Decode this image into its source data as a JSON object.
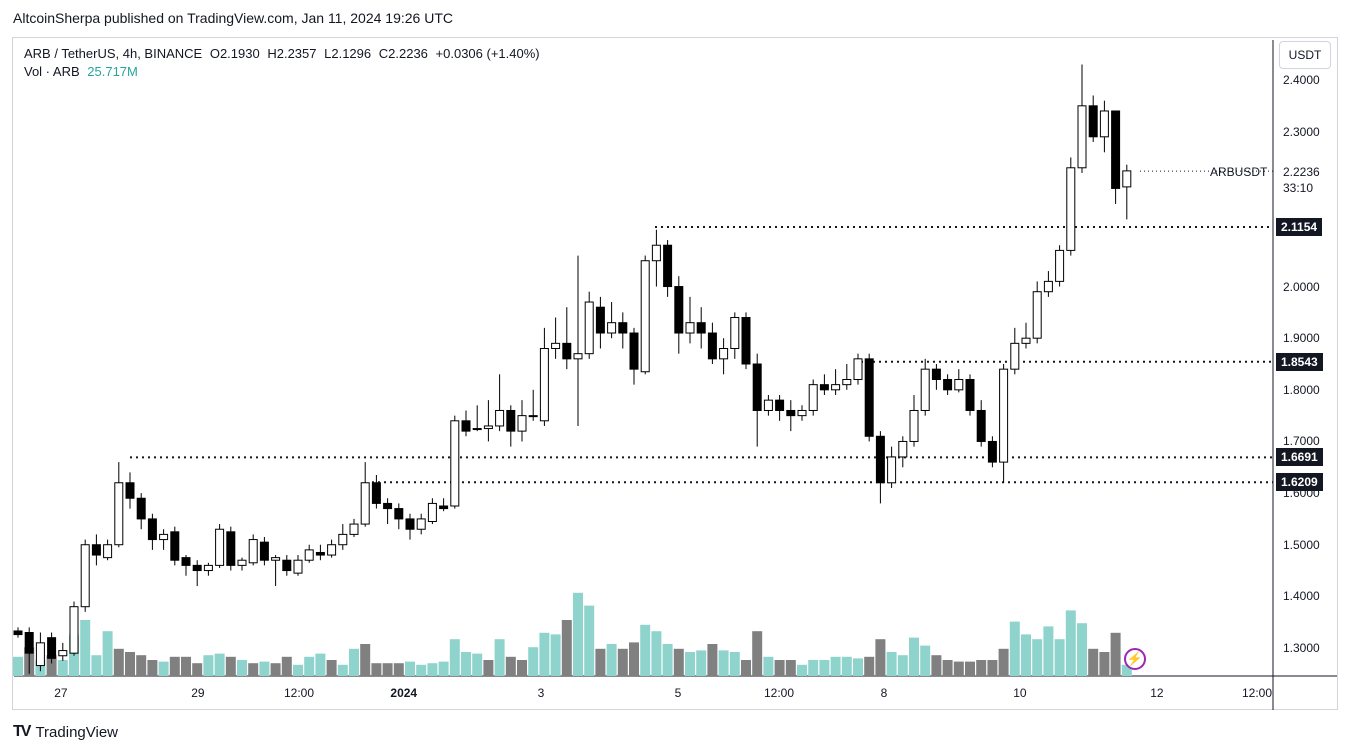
{
  "header": {
    "publish_line": "AltcoinSherpa published on TradingView.com, Jan 11, 2024 19:26 UTC"
  },
  "legend": {
    "symbol": "ARB / TetherUS, 4h, BINANCE",
    "open": "O2.1930",
    "high": "H2.2357",
    "low": "L2.1296",
    "close": "C2.2236",
    "change": "+0.0306 (+1.40%)",
    "vol_label": "Vol · ARB",
    "vol_value": "25.717M"
  },
  "price_axis": {
    "currency": "USDT",
    "labels": [
      "2.4000",
      "2.3000",
      "2.0000",
      "1.9000",
      "1.8000",
      "1.7000",
      "1.6000",
      "1.5000",
      "1.4000",
      "1.3000"
    ],
    "symbol_label": "ARBUSDT",
    "last_price": "2.2236",
    "countdown": "33:10"
  },
  "levels": [
    {
      "label": "2.1154",
      "value": 2.1154
    },
    {
      "label": "1.8543",
      "value": 1.8543
    },
    {
      "label": "1.6691",
      "value": 1.6691
    },
    {
      "label": "1.6209",
      "value": 1.6209
    }
  ],
  "time_axis": {
    "labels": [
      {
        "text": "27",
        "bold": false
      },
      {
        "text": "29",
        "bold": false
      },
      {
        "text": "12:00",
        "bold": false
      },
      {
        "text": "2024",
        "bold": true
      },
      {
        "text": "3",
        "bold": false
      },
      {
        "text": "5",
        "bold": false
      },
      {
        "text": "12:00",
        "bold": false
      },
      {
        "text": "8",
        "bold": false
      },
      {
        "text": "10",
        "bold": false
      },
      {
        "text": "12",
        "bold": false
      },
      {
        "text": "12:00",
        "bold": false
      }
    ]
  },
  "footer": {
    "brand": "TradingView",
    "logo_icon": "tradingview-logo-icon"
  },
  "colors": {
    "up_volume": "#8fd3cd",
    "down_volume": "#808080",
    "candle_border": "#000000",
    "up_body": "#ffffff",
    "down_body": "#000000",
    "flash_accent": "#9c27b0"
  },
  "chart_data": {
    "type": "candlestick",
    "title": "",
    "xlabel": "",
    "ylabel": "",
    "ylim": [
      1.255,
      2.445
    ],
    "grid": false,
    "candles": [
      [
        1.333,
        1.326,
        1.34,
        1.32
      ],
      [
        1.33,
        1.29,
        1.34,
        1.25
      ],
      [
        1.266,
        1.31,
        1.33,
        1.255
      ],
      [
        1.32,
        1.28,
        1.33,
        1.27
      ],
      [
        1.285,
        1.295,
        1.31,
        1.275
      ],
      [
        1.29,
        1.38,
        1.39,
        1.285
      ],
      [
        1.38,
        1.5,
        1.51,
        1.37
      ],
      [
        1.5,
        1.48,
        1.52,
        1.46
      ],
      [
        1.475,
        1.5,
        1.51,
        1.47
      ],
      [
        1.5,
        1.62,
        1.66,
        1.495
      ],
      [
        1.62,
        1.59,
        1.64,
        1.57
      ],
      [
        1.59,
        1.55,
        1.6,
        1.53
      ],
      [
        1.55,
        1.51,
        1.56,
        1.49
      ],
      [
        1.51,
        1.52,
        1.53,
        1.49
      ],
      [
        1.525,
        1.47,
        1.535,
        1.46
      ],
      [
        1.475,
        1.46,
        1.48,
        1.44
      ],
      [
        1.46,
        1.45,
        1.47,
        1.42
      ],
      [
        1.45,
        1.46,
        1.465,
        1.44
      ],
      [
        1.46,
        1.53,
        1.54,
        1.455
      ],
      [
        1.525,
        1.46,
        1.535,
        1.45
      ],
      [
        1.46,
        1.47,
        1.475,
        1.45
      ],
      [
        1.465,
        1.51,
        1.52,
        1.46
      ],
      [
        1.505,
        1.47,
        1.515,
        1.46
      ],
      [
        1.47,
        1.475,
        1.48,
        1.42
      ],
      [
        1.47,
        1.45,
        1.48,
        1.44
      ],
      [
        1.445,
        1.47,
        1.48,
        1.44
      ],
      [
        1.47,
        1.49,
        1.5,
        1.465
      ],
      [
        1.485,
        1.48,
        1.5,
        1.47
      ],
      [
        1.48,
        1.5,
        1.51,
        1.475
      ],
      [
        1.5,
        1.52,
        1.54,
        1.49
      ],
      [
        1.52,
        1.54,
        1.55,
        1.515
      ],
      [
        1.54,
        1.62,
        1.66,
        1.535
      ],
      [
        1.62,
        1.58,
        1.635,
        1.57
      ],
      [
        1.58,
        1.57,
        1.59,
        1.54
      ],
      [
        1.57,
        1.55,
        1.58,
        1.53
      ],
      [
        1.55,
        1.53,
        1.56,
        1.51
      ],
      [
        1.53,
        1.55,
        1.56,
        1.52
      ],
      [
        1.545,
        1.58,
        1.59,
        1.54
      ],
      [
        1.575,
        1.57,
        1.59,
        1.565
      ],
      [
        1.575,
        1.74,
        1.75,
        1.57
      ],
      [
        1.74,
        1.72,
        1.76,
        1.71
      ],
      [
        1.725,
        1.725,
        1.77,
        1.72
      ],
      [
        1.725,
        1.73,
        1.78,
        1.7
      ],
      [
        1.73,
        1.76,
        1.83,
        1.72
      ],
      [
        1.76,
        1.72,
        1.77,
        1.69
      ],
      [
        1.72,
        1.75,
        1.78,
        1.7
      ],
      [
        1.75,
        1.75,
        1.8,
        1.74
      ],
      [
        1.74,
        1.88,
        1.92,
        1.73
      ],
      [
        1.88,
        1.89,
        1.94,
        1.86
      ],
      [
        1.89,
        1.86,
        1.96,
        1.84
      ],
      [
        1.86,
        1.87,
        2.06,
        1.73
      ],
      [
        1.87,
        1.97,
        1.99,
        1.86
      ],
      [
        1.96,
        1.91,
        1.98,
        1.88
      ],
      [
        1.91,
        1.93,
        1.97,
        1.9
      ],
      [
        1.93,
        1.91,
        1.95,
        1.88
      ],
      [
        1.91,
        1.84,
        1.92,
        1.81
      ],
      [
        1.835,
        2.05,
        2.06,
        1.83
      ],
      [
        2.05,
        2.08,
        2.11,
        2.0
      ],
      [
        2.08,
        2.0,
        2.09,
        1.98
      ],
      [
        2.0,
        1.91,
        2.02,
        1.87
      ],
      [
        1.91,
        1.93,
        1.98,
        1.89
      ],
      [
        1.93,
        1.91,
        1.96,
        1.88
      ],
      [
        1.91,
        1.86,
        1.93,
        1.85
      ],
      [
        1.86,
        1.88,
        1.9,
        1.83
      ],
      [
        1.88,
        1.94,
        1.95,
        1.86
      ],
      [
        1.94,
        1.85,
        1.95,
        1.84
      ],
      [
        1.85,
        1.76,
        1.87,
        1.69
      ],
      [
        1.76,
        1.78,
        1.79,
        1.75
      ],
      [
        1.78,
        1.76,
        1.79,
        1.74
      ],
      [
        1.76,
        1.75,
        1.78,
        1.72
      ],
      [
        1.75,
        1.76,
        1.77,
        1.74
      ],
      [
        1.76,
        1.81,
        1.82,
        1.75
      ],
      [
        1.81,
        1.8,
        1.83,
        1.79
      ],
      [
        1.8,
        1.81,
        1.84,
        1.79
      ],
      [
        1.81,
        1.82,
        1.85,
        1.8
      ],
      [
        1.82,
        1.86,
        1.87,
        1.81
      ],
      [
        1.86,
        1.71,
        1.87,
        1.7
      ],
      [
        1.71,
        1.62,
        1.72,
        1.58
      ],
      [
        1.62,
        1.67,
        1.69,
        1.61
      ],
      [
        1.67,
        1.7,
        1.71,
        1.65
      ],
      [
        1.7,
        1.76,
        1.79,
        1.69
      ],
      [
        1.76,
        1.84,
        1.86,
        1.75
      ],
      [
        1.84,
        1.82,
        1.85,
        1.8
      ],
      [
        1.82,
        1.8,
        1.83,
        1.79
      ],
      [
        1.8,
        1.82,
        1.84,
        1.795
      ],
      [
        1.82,
        1.76,
        1.83,
        1.75
      ],
      [
        1.76,
        1.7,
        1.78,
        1.69
      ],
      [
        1.7,
        1.66,
        1.71,
        1.65
      ],
      [
        1.66,
        1.84,
        1.85,
        1.62
      ],
      [
        1.84,
        1.89,
        1.92,
        1.83
      ],
      [
        1.89,
        1.9,
        1.93,
        1.88
      ],
      [
        1.9,
        1.99,
        2.01,
        1.89
      ],
      [
        1.99,
        2.01,
        2.03,
        1.98
      ],
      [
        2.01,
        2.07,
        2.08,
        2.0
      ],
      [
        2.07,
        2.23,
        2.25,
        2.06
      ],
      [
        2.23,
        2.35,
        2.43,
        2.22
      ],
      [
        2.35,
        2.29,
        2.37,
        2.28
      ],
      [
        2.29,
        2.34,
        2.36,
        2.26
      ],
      [
        2.34,
        2.19,
        2.34,
        2.16
      ],
      [
        2.193,
        2.224,
        2.236,
        2.13
      ]
    ],
    "volume": [
      [
        0.12,
        1
      ],
      [
        0.18,
        0
      ],
      [
        0.1,
        1
      ],
      [
        0.13,
        0
      ],
      [
        0.1,
        1
      ],
      [
        0.26,
        1
      ],
      [
        0.35,
        1
      ],
      [
        0.13,
        1
      ],
      [
        0.28,
        1
      ],
      [
        0.17,
        0
      ],
      [
        0.15,
        0
      ],
      [
        0.13,
        0
      ],
      [
        0.1,
        0
      ],
      [
        0.09,
        1
      ],
      [
        0.12,
        0
      ],
      [
        0.12,
        0
      ],
      [
        0.08,
        0
      ],
      [
        0.13,
        1
      ],
      [
        0.14,
        1
      ],
      [
        0.12,
        0
      ],
      [
        0.1,
        1
      ],
      [
        0.08,
        0
      ],
      [
        0.09,
        1
      ],
      [
        0.08,
        0
      ],
      [
        0.12,
        0
      ],
      [
        0.07,
        1
      ],
      [
        0.12,
        1
      ],
      [
        0.14,
        1
      ],
      [
        0.1,
        0
      ],
      [
        0.07,
        1
      ],
      [
        0.17,
        1
      ],
      [
        0.2,
        0
      ],
      [
        0.08,
        0
      ],
      [
        0.08,
        0
      ],
      [
        0.08,
        0
      ],
      [
        0.09,
        1
      ],
      [
        0.07,
        1
      ],
      [
        0.08,
        1
      ],
      [
        0.09,
        1
      ],
      [
        0.23,
        1
      ],
      [
        0.15,
        1
      ],
      [
        0.14,
        1
      ],
      [
        0.1,
        0
      ],
      [
        0.23,
        1
      ],
      [
        0.12,
        0
      ],
      [
        0.1,
        0
      ],
      [
        0.18,
        1
      ],
      [
        0.27,
        1
      ],
      [
        0.26,
        1
      ],
      [
        0.35,
        0
      ],
      [
        0.52,
        1
      ],
      [
        0.44,
        1
      ],
      [
        0.17,
        0
      ],
      [
        0.2,
        1
      ],
      [
        0.17,
        0
      ],
      [
        0.21,
        0
      ],
      [
        0.32,
        1
      ],
      [
        0.28,
        1
      ],
      [
        0.2,
        1
      ],
      [
        0.17,
        0
      ],
      [
        0.15,
        1
      ],
      [
        0.16,
        1
      ],
      [
        0.2,
        0
      ],
      [
        0.16,
        1
      ],
      [
        0.15,
        1
      ],
      [
        0.1,
        0
      ],
      [
        0.28,
        0
      ],
      [
        0.12,
        1
      ],
      [
        0.1,
        0
      ],
      [
        0.1,
        0
      ],
      [
        0.07,
        1
      ],
      [
        0.1,
        1
      ],
      [
        0.1,
        1
      ],
      [
        0.12,
        1
      ],
      [
        0.12,
        1
      ],
      [
        0.11,
        1
      ],
      [
        0.12,
        0
      ],
      [
        0.23,
        0
      ],
      [
        0.15,
        1
      ],
      [
        0.13,
        1
      ],
      [
        0.24,
        1
      ],
      [
        0.19,
        1
      ],
      [
        0.13,
        0
      ],
      [
        0.1,
        0
      ],
      [
        0.09,
        0
      ],
      [
        0.09,
        0
      ],
      [
        0.1,
        0
      ],
      [
        0.1,
        0
      ],
      [
        0.17,
        0
      ],
      [
        0.34,
        1
      ],
      [
        0.26,
        1
      ],
      [
        0.23,
        1
      ],
      [
        0.31,
        1
      ],
      [
        0.23,
        1
      ],
      [
        0.41,
        1
      ],
      [
        0.33,
        1
      ],
      [
        0.17,
        0
      ],
      [
        0.15,
        0
      ],
      [
        0.27,
        0
      ],
      [
        0.07,
        1
      ]
    ]
  }
}
